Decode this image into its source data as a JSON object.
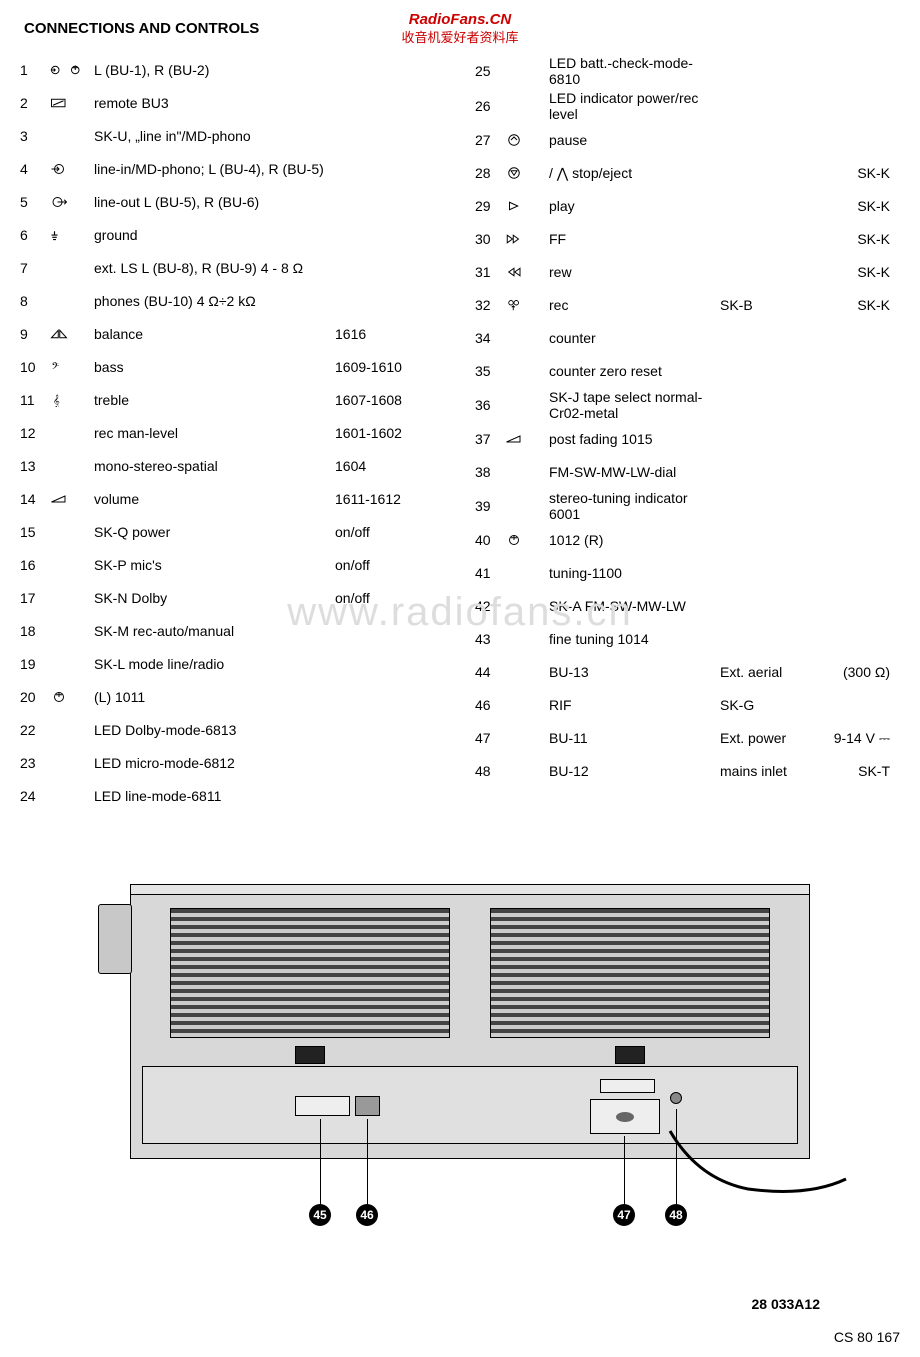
{
  "header": {
    "line1": "RadioFans.CN",
    "line2": "收音机爱好者资料库"
  },
  "title": "CONNECTIONS AND CONTROLS",
  "watermark": "www.radiofans.cn",
  "left_rows": [
    {
      "n": "1",
      "icon": "in-out",
      "d": "L (BU-1), R (BU-2)",
      "c2": "",
      "c3": ""
    },
    {
      "n": "2",
      "icon": "remote",
      "d": "remote BU3",
      "c2": "",
      "c3": ""
    },
    {
      "n": "3",
      "icon": "",
      "d": "SK-U, „line in\"/MD-phono",
      "c2": "",
      "c3": ""
    },
    {
      "n": "4",
      "icon": "input",
      "d": "line-in/MD-phono; L (BU-4), R (BU-5)",
      "c2": "",
      "c3": ""
    },
    {
      "n": "5",
      "icon": "output",
      "d": "line-out L (BU-5), R (BU-6)",
      "c2": "",
      "c3": ""
    },
    {
      "n": "6",
      "icon": "ground",
      "d": "ground",
      "c2": "",
      "c3": ""
    },
    {
      "n": "7",
      "icon": "",
      "d": "ext. LS L (BU-8), R (BU-9) 4 - 8 Ω",
      "c2": "",
      "c3": ""
    },
    {
      "n": "8",
      "icon": "",
      "d": "phones (BU-10) 4 Ω÷2 kΩ",
      "c2": "",
      "c3": ""
    },
    {
      "n": "9",
      "icon": "balance",
      "d": "balance",
      "c2": "1616",
      "c3": ""
    },
    {
      "n": "10",
      "icon": "bass",
      "d": "bass",
      "c2": "1609-1610",
      "c3": ""
    },
    {
      "n": "11",
      "icon": "treble",
      "d": "treble",
      "c2": "1607-1608",
      "c3": ""
    },
    {
      "n": "12",
      "icon": "",
      "d": "rec man-level",
      "c2": "1601-1602",
      "c3": ""
    },
    {
      "n": "13",
      "icon": "",
      "d": "mono-stereo-spatial",
      "c2": "1604",
      "c3": ""
    },
    {
      "n": "14",
      "icon": "wedge",
      "d": "volume",
      "c2": "1611-1612",
      "c3": ""
    },
    {
      "n": "15",
      "icon": "",
      "d": "SK-Q   power",
      "c2": "on/off",
      "c3": ""
    },
    {
      "n": "16",
      "icon": "",
      "d": "SK-P   mic's",
      "c2": "on/off",
      "c3": ""
    },
    {
      "n": "17",
      "icon": "",
      "d": "SK-N   Dolby",
      "c2": "on/off",
      "c3": ""
    },
    {
      "n": "18",
      "icon": "",
      "d": "SK-M   rec-auto/manual",
      "c2": "",
      "c3": ""
    },
    {
      "n": "19",
      "icon": "",
      "d": "SK-L   mode line/radio",
      "c2": "",
      "c3": ""
    },
    {
      "n": "20",
      "icon": "ant",
      "d": "(L) 1011",
      "c2": "",
      "c3": ""
    },
    {
      "n": "22",
      "icon": "",
      "d": "LED Dolby-mode-6813",
      "c2": "",
      "c3": ""
    },
    {
      "n": "23",
      "icon": "",
      "d": "LED micro-mode-6812",
      "c2": "",
      "c3": ""
    },
    {
      "n": "24",
      "icon": "",
      "d": "LED line-mode-6811",
      "c2": "",
      "c3": ""
    }
  ],
  "right_rows": [
    {
      "n": "25",
      "icon": "",
      "d": "LED batt.-check-mode-6810",
      "c2": "",
      "c3": ""
    },
    {
      "n": "26",
      "icon": "",
      "d": "LED indicator power/rec level",
      "c2": "",
      "c3": ""
    },
    {
      "n": "27",
      "icon": "pause",
      "d": "pause",
      "c2": "",
      "c3": ""
    },
    {
      "n": "28",
      "icon": "stop",
      "d": "/ ⋀ stop/eject",
      "c2": "",
      "c3": "SK-K"
    },
    {
      "n": "29",
      "icon": "play",
      "d": "play",
      "c2": "",
      "c3": "SK-K"
    },
    {
      "n": "30",
      "icon": "ff",
      "d": "FF",
      "c2": "",
      "c3": "SK-K"
    },
    {
      "n": "31",
      "icon": "rew",
      "d": "rew",
      "c2": "",
      "c3": "SK-K"
    },
    {
      "n": "32",
      "icon": "rec",
      "d": "rec",
      "c2": "SK-B",
      "c3": "SK-K"
    },
    {
      "n": "34",
      "icon": "",
      "d": "counter",
      "c2": "",
      "c3": ""
    },
    {
      "n": "35",
      "icon": "",
      "d": "counter zero reset",
      "c2": "",
      "c3": ""
    },
    {
      "n": "36",
      "icon": "",
      "d": "SK-J tape select normal-Cr02-metal",
      "c2": "",
      "c3": ""
    },
    {
      "n": "37",
      "icon": "wedge",
      "d": "post fading 1015",
      "c2": "",
      "c3": ""
    },
    {
      "n": "38",
      "icon": "",
      "d": "FM-SW-MW-LW-dial",
      "c2": "",
      "c3": ""
    },
    {
      "n": "39",
      "icon": "",
      "d": "stereo-tuning indicator 6001",
      "c2": "",
      "c3": ""
    },
    {
      "n": "40",
      "icon": "ant",
      "d": "1012 (R)",
      "c2": "",
      "c3": ""
    },
    {
      "n": "41",
      "icon": "",
      "d": "tuning-1100",
      "c2": "",
      "c3": ""
    },
    {
      "n": "42",
      "icon": "",
      "d": "SK-A FM-SW-MW-LW",
      "c2": "",
      "c3": ""
    },
    {
      "n": "43",
      "icon": "",
      "d": "fine tuning 1014",
      "c2": "",
      "c3": ""
    },
    {
      "n": "44",
      "icon": "",
      "d": "BU-13",
      "c2": "Ext. aerial",
      "c3": "(300 Ω)"
    },
    {
      "n": "46",
      "icon": "",
      "d": "RIF",
      "c2": "SK-G",
      "c3": ""
    },
    {
      "n": "47",
      "icon": "",
      "d": "BU-11",
      "c2": "Ext. power",
      "c3": "9-14 V ⎓"
    },
    {
      "n": "48",
      "icon": "",
      "d": "BU-12",
      "c2": "mains inlet",
      "c3": "SK-T"
    }
  ],
  "diagram": {
    "callouts": [
      "45",
      "46",
      "47",
      "48"
    ],
    "footer_code": "28 033A12",
    "page_code": "CS 80 167"
  },
  "colors": {
    "text": "#000000",
    "bg": "#ffffff",
    "accent_red": "#cc0000",
    "watermark": "#dddddd"
  }
}
